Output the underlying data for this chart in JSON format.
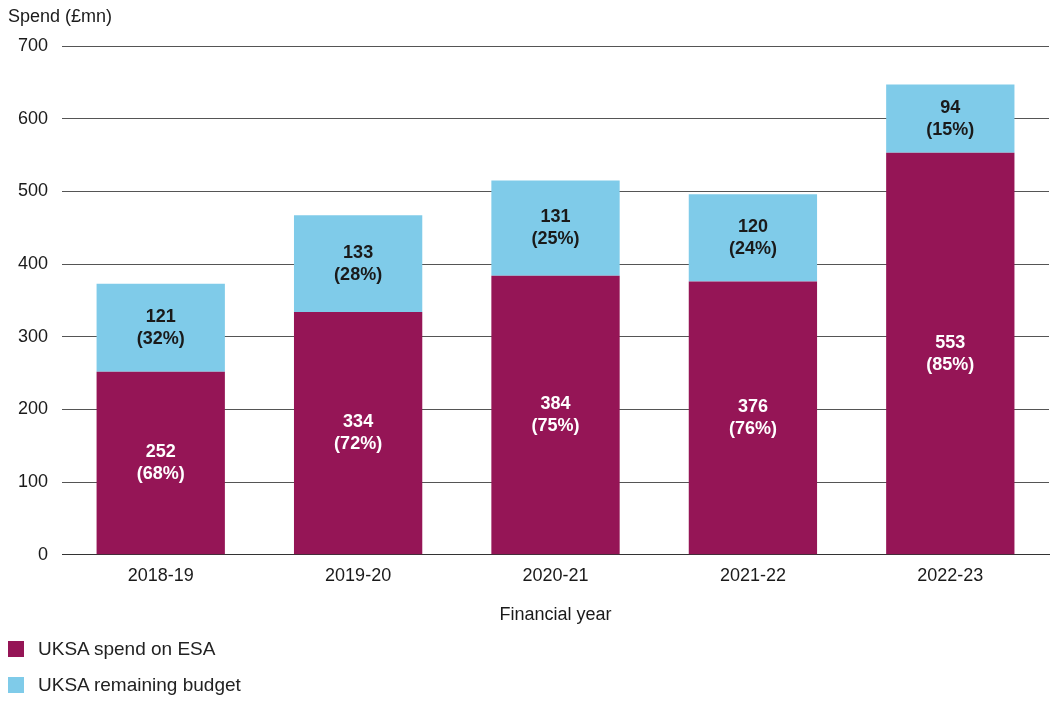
{
  "chart_data": {
    "type": "bar",
    "stacked": true,
    "ylabel": "Spend (£mn)",
    "xlabel": "Financial year",
    "categories": [
      "2018-19",
      "2019-20",
      "2020-21",
      "2021-22",
      "2022-23"
    ],
    "series": [
      {
        "name": "UKSA spend on ESA",
        "color": "#951556",
        "values": [
          252,
          334,
          384,
          376,
          553
        ],
        "value_labels": [
          "252 (68%)",
          "334 (72%)",
          "384 (75%)",
          "376 (76%)",
          "553 (85%)"
        ]
      },
      {
        "name": "UKSA remaining budget",
        "color": "#7fcbe9",
        "values": [
          121,
          133,
          131,
          120,
          94
        ],
        "value_labels": [
          "121 (32%)",
          "133 (28%)",
          "131 (25%)",
          "120 (24%)",
          "94 (15%)"
        ]
      }
    ],
    "ylim": [
      0,
      700
    ],
    "yticks": [
      0,
      100,
      200,
      300,
      400,
      500,
      600,
      700
    ],
    "grid": "y",
    "legend": "bottom left"
  }
}
